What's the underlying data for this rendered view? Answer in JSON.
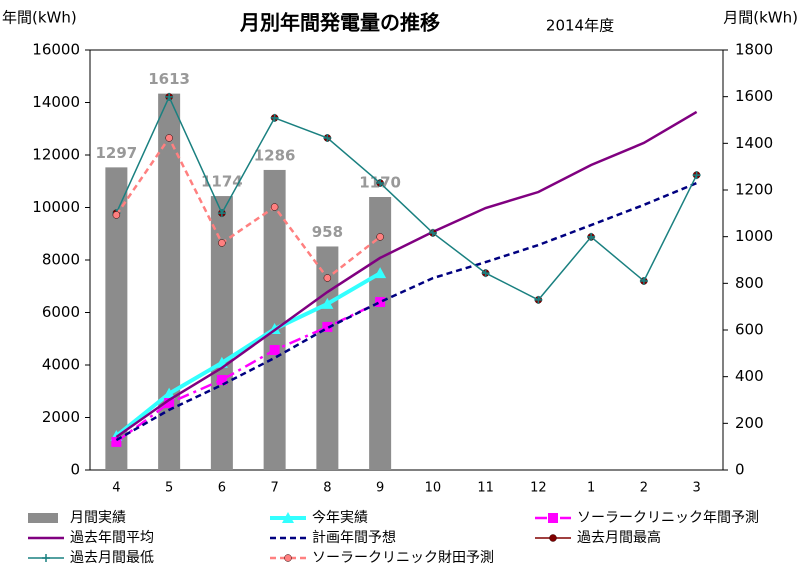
{
  "chart_data": {
    "type": "combo",
    "title": "月別年間発電量の推移",
    "subtitle": "2014年度",
    "y_label": "年間(kWh)",
    "y2_label": "月間(kWh)",
    "categories": [
      "4",
      "5",
      "6",
      "7",
      "8",
      "9",
      "10",
      "11",
      "12",
      "1",
      "2",
      "3"
    ],
    "ylim": [
      0,
      16000
    ],
    "yticks": [
      0,
      2000,
      4000,
      6000,
      8000,
      10000,
      12000,
      14000,
      16000
    ],
    "y2lim": [
      0,
      1800
    ],
    "y2ticks": [
      0,
      200,
      400,
      600,
      800,
      1000,
      1200,
      1400,
      1600,
      1800
    ],
    "series": [
      {
        "name": "月間実績",
        "type": "bar",
        "axis": "y2",
        "color": "#8c8c8c",
        "values": [
          1297,
          1613,
          1174,
          1286,
          958,
          1170,
          null,
          null,
          null,
          null,
          null,
          null
        ]
      },
      {
        "name": "今年実績",
        "type": "line",
        "color": "#33ffff",
        "width": 4,
        "marker": "triangle",
        "values": [
          1297,
          2910,
          4084,
          5370,
          6328,
          7498,
          null,
          null,
          null,
          null,
          null,
          null
        ]
      },
      {
        "name": "ソーラークリニック年間予測",
        "type": "line",
        "color": "#ff00ff",
        "width": 2.5,
        "dash": "12 5 3 5",
        "marker": "square",
        "values": [
          1070,
          2550,
          3430,
          4570,
          5450,
          6400,
          null,
          null,
          null,
          null,
          null,
          null
        ]
      },
      {
        "name": "過去年間平均",
        "type": "line",
        "color": "#800080",
        "width": 2.5,
        "values": [
          1257,
          2670,
          3890,
          5330,
          6780,
          8080,
          9070,
          9980,
          10590,
          11620,
          12460,
          13640
        ]
      },
      {
        "name": "計画年間予想",
        "type": "line",
        "color": "#000080",
        "width": 2.5,
        "dash": "6 4",
        "values": [
          1140,
          2290,
          3240,
          4270,
          5410,
          6400,
          7310,
          7920,
          8570,
          9330,
          10100,
          10930
        ]
      },
      {
        "name": "過去月間最高",
        "type": "line",
        "axis": "y2",
        "color": "#800000",
        "width": 0,
        "marker": "circle",
        "values": [
          1101,
          1599,
          1101,
          1509,
          1423,
          1230,
          1016,
          844,
          729,
          999,
          810,
          1264
        ]
      },
      {
        "name": "過去月間最低",
        "type": "line",
        "axis": "y2",
        "color": "#1a8080",
        "width": 1.5,
        "marker": "plus",
        "values": [
          1101,
          1599,
          1101,
          1509,
          1423,
          1230,
          1016,
          844,
          729,
          999,
          810,
          1264
        ]
      },
      {
        "name": "ソーラークリニック財田予測",
        "type": "line",
        "axis": "y2",
        "color": "#ff8080",
        "width": 2.5,
        "dash": "6 4",
        "marker": "circle",
        "values": [
          1093,
          1423,
          973,
          1127,
          823,
          999,
          null,
          null,
          null,
          null,
          null,
          null
        ]
      }
    ]
  }
}
